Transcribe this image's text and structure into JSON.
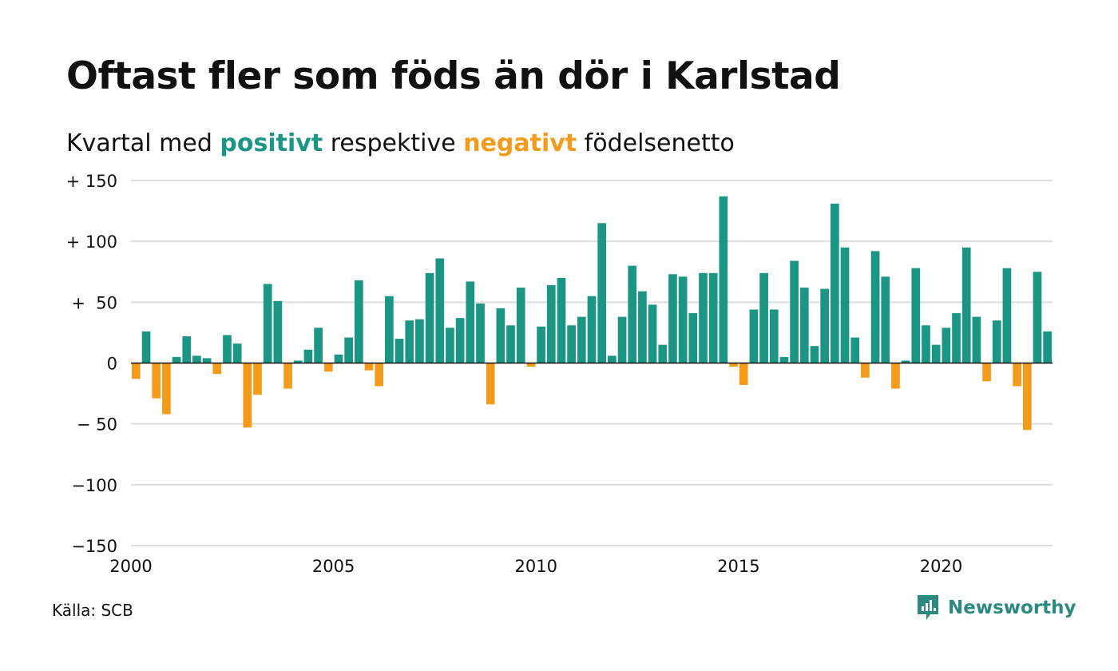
{
  "title": "Oftast fler som föds än dör i Karlstad",
  "subtitle": {
    "prefix": "Kvartal med ",
    "positive_word": "positivt",
    "middle": " respektive ",
    "negative_word": "negativt",
    "suffix": " födelsenetto"
  },
  "source": "Källa: SCB",
  "brand": {
    "name": "Newsworthy"
  },
  "colors": {
    "positive": "#1b9584",
    "negative": "#f59b1b",
    "grid": "#dedede",
    "axis": "#111111",
    "brand": "#2a8a80"
  },
  "chart_data": {
    "type": "bar",
    "start_year": 2000,
    "quarters_per_year": 4,
    "ylim": [
      -150,
      150
    ],
    "yticks": [
      150,
      100,
      50,
      0,
      -50,
      -100,
      -150
    ],
    "ytick_labels": [
      "+ 150",
      "+ 100",
      "+  50",
      "0",
      "− 50",
      "−100",
      "−150"
    ],
    "xticks": [
      2000,
      2005,
      2010,
      2015,
      2020
    ],
    "xtick_labels": [
      "2000",
      "2005",
      "2010",
      "2015",
      "2020"
    ],
    "xlabel": "",
    "ylabel": "",
    "grid": true,
    "values": [
      -13,
      26,
      -29,
      -42,
      5,
      22,
      6,
      4,
      -9,
      23,
      16,
      -53,
      -26,
      65,
      51,
      -21,
      2,
      11,
      29,
      -7,
      7,
      21,
      68,
      -6,
      -19,
      55,
      20,
      35,
      36,
      74,
      86,
      29,
      37,
      67,
      49,
      -34,
      45,
      31,
      62,
      -3,
      30,
      64,
      70,
      31,
      38,
      55,
      115,
      6,
      38,
      80,
      59,
      48,
      15,
      73,
      71,
      41,
      74,
      74,
      137,
      -3,
      -18,
      44,
      74,
      44,
      5,
      84,
      62,
      14,
      61,
      131,
      95,
      21,
      -12,
      92,
      71,
      -21,
      2,
      78,
      31,
      15,
      29,
      41,
      95,
      38,
      -15,
      35,
      78,
      -19,
      -55,
      75,
      26
    ]
  }
}
